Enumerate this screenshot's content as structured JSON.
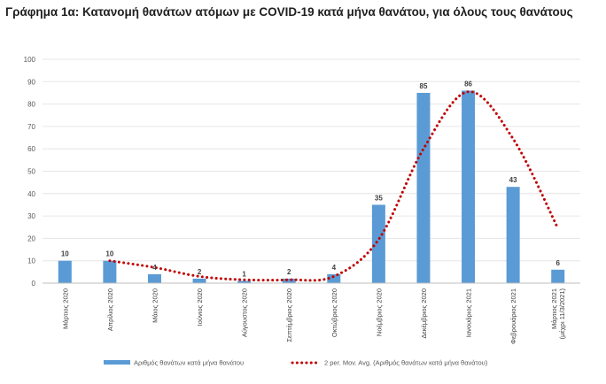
{
  "chart_data": {
    "type": "bar",
    "title": "Γράφημα 1α: Κατανομή θανάτων ατόμων με COVID-19 κατά μήνα θανάτου, για όλους τους θανάτους",
    "xlabel": "",
    "ylabel": "",
    "ylim": [
      0,
      100
    ],
    "yticks": [
      0,
      10,
      20,
      30,
      40,
      50,
      60,
      70,
      80,
      90,
      100
    ],
    "grid": true,
    "legend_position": "bottom",
    "categories": [
      "Μάρτιος 2020",
      "Απρίλιος 2020",
      "Μάιος 2020",
      "Ιούνιος 2020",
      "Αύγουστος 2020",
      "Σεπτέμβριος 2020",
      "Οκτώβριος 2020",
      "Νοέμβριος 2020",
      "Δεκέμβριος 2020",
      "Ιανουάριος 2021",
      "Φεβρουάριος 2021",
      [
        "Μάρτιος 2021",
        "(μέχρι 11/3/2021)"
      ]
    ],
    "series": [
      {
        "name": "Αριθμός θανάτων κατά μήνα θανάτου",
        "kind": "bar",
        "color": "#5b9bd5",
        "values": [
          10,
          10,
          4,
          2,
          1,
          2,
          4,
          35,
          85,
          86,
          43,
          6
        ],
        "labels": [
          "10",
          "10",
          "4",
          "2",
          "1",
          "2",
          "4",
          "35",
          "85",
          "86",
          "43",
          "6"
        ]
      },
      {
        "name": "2 per. Mov. Avg. (Αριθμός θανάτων κατά μήνα θανάτου)",
        "kind": "line",
        "style": "dotted",
        "color": "#c00000",
        "values": [
          null,
          10,
          7,
          3,
          1.5,
          1.5,
          3,
          19.5,
          60,
          85.5,
          64.5,
          24.5
        ]
      }
    ]
  }
}
